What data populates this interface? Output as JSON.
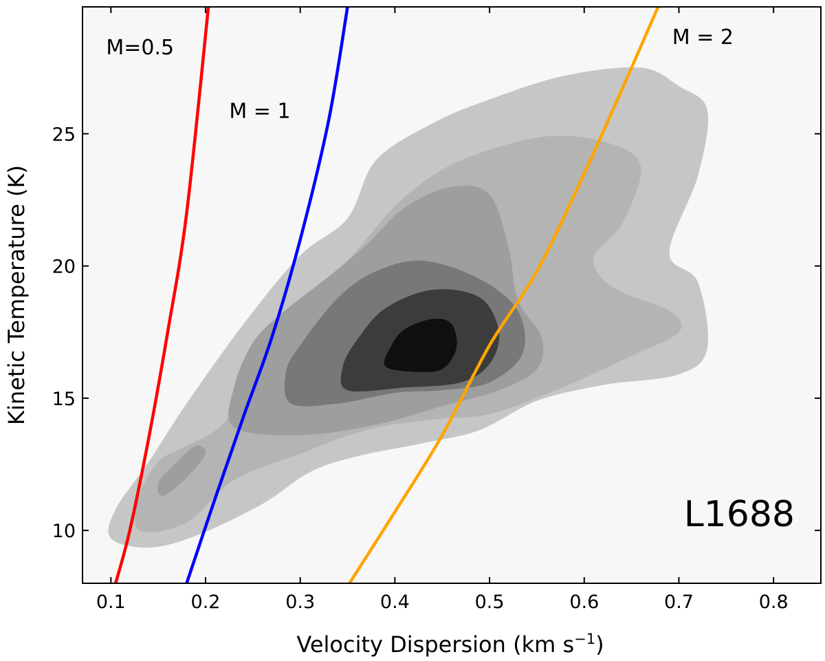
{
  "chart_data": {
    "type": "contour",
    "title": "",
    "xlabel": "Velocity Dispersion (km s",
    "xlabel_sup": "−1",
    "xlabel_close": ")",
    "ylabel": "Kinetic Temperature (K)",
    "xlim": [
      0.07,
      0.85
    ],
    "ylim": [
      8.0,
      29.8
    ],
    "xticks": [
      0.1,
      0.2,
      0.3,
      0.4,
      0.5,
      0.6,
      0.7,
      0.8
    ],
    "xtick_labels": [
      "0.1",
      "0.2",
      "0.3",
      "0.4",
      "0.5",
      "0.6",
      "0.7",
      "0.8"
    ],
    "yticks": [
      10,
      15,
      20,
      25
    ],
    "ytick_labels": [
      "10",
      "15",
      "20",
      "25"
    ],
    "region_label": "L1688",
    "background_color": "#f7f7f7",
    "mach_lines": [
      {
        "name": "M=0.5",
        "label": "M=0.5",
        "color": "#ff0000",
        "label_pos": [
          0.095,
          28.0
        ],
        "points": [
          [
            0.105,
            8.0
          ],
          [
            0.12,
            10.0
          ],
          [
            0.14,
            13.5
          ],
          [
            0.16,
            17.5
          ],
          [
            0.18,
            22.0
          ],
          [
            0.203,
            29.8
          ]
        ]
      },
      {
        "name": "M=1",
        "label": "M = 1",
        "color": "#0000ff",
        "label_pos": [
          0.225,
          25.6
        ],
        "points": [
          [
            0.18,
            8.0
          ],
          [
            0.21,
            11.2
          ],
          [
            0.24,
            14.3
          ],
          [
            0.27,
            17.3
          ],
          [
            0.3,
            21.0
          ],
          [
            0.33,
            25.5
          ],
          [
            0.35,
            29.8
          ]
        ]
      },
      {
        "name": "M=2",
        "label": "M = 2",
        "color": "#ffa500",
        "label_pos": [
          0.693,
          28.4
        ],
        "points": [
          [
            0.352,
            8.0
          ],
          [
            0.4,
            10.7
          ],
          [
            0.45,
            13.6
          ],
          [
            0.5,
            17.0
          ],
          [
            0.55,
            19.8
          ],
          [
            0.6,
            23.5
          ],
          [
            0.65,
            27.5
          ],
          [
            0.678,
            29.8
          ]
        ]
      }
    ],
    "density_levels": [
      {
        "level": 1,
        "color": "#c6c6c6",
        "polygon": [
          [
            0.1,
            9.7
          ],
          [
            0.14,
            9.35
          ],
          [
            0.19,
            9.8
          ],
          [
            0.26,
            11.0
          ],
          [
            0.31,
            12.2
          ],
          [
            0.36,
            12.8
          ],
          [
            0.43,
            13.3
          ],
          [
            0.49,
            13.8
          ],
          [
            0.55,
            14.9
          ],
          [
            0.62,
            15.5
          ],
          [
            0.7,
            15.9
          ],
          [
            0.73,
            16.9
          ],
          [
            0.72,
            19.4
          ],
          [
            0.69,
            20.5
          ],
          [
            0.72,
            23.4
          ],
          [
            0.73,
            25.9
          ],
          [
            0.7,
            26.8
          ],
          [
            0.66,
            27.5
          ],
          [
            0.58,
            27.2
          ],
          [
            0.5,
            26.3
          ],
          [
            0.44,
            25.4
          ],
          [
            0.38,
            24.0
          ],
          [
            0.35,
            21.8
          ],
          [
            0.3,
            20.4
          ],
          [
            0.24,
            17.8
          ],
          [
            0.18,
            14.8
          ],
          [
            0.14,
            12.6
          ],
          [
            0.105,
            10.8
          ]
        ]
      },
      {
        "level": 2,
        "color": "#b4b4b4",
        "polygon": [
          [
            0.13,
            10.0
          ],
          [
            0.18,
            10.3
          ],
          [
            0.23,
            11.9
          ],
          [
            0.3,
            12.9
          ],
          [
            0.37,
            13.8
          ],
          [
            0.44,
            14.2
          ],
          [
            0.5,
            14.4
          ],
          [
            0.57,
            15.3
          ],
          [
            0.65,
            16.6
          ],
          [
            0.7,
            17.5
          ],
          [
            0.69,
            18.3
          ],
          [
            0.63,
            19.2
          ],
          [
            0.61,
            20.3
          ],
          [
            0.64,
            21.6
          ],
          [
            0.66,
            23.7
          ],
          [
            0.63,
            24.6
          ],
          [
            0.56,
            24.9
          ],
          [
            0.47,
            24.0
          ],
          [
            0.41,
            22.6
          ],
          [
            0.36,
            20.6
          ],
          [
            0.32,
            19.0
          ],
          [
            0.27,
            16.8
          ],
          [
            0.22,
            14.1
          ],
          [
            0.18,
            13.2
          ],
          [
            0.15,
            12.6
          ],
          [
            0.13,
            11.3
          ]
        ]
      },
      {
        "level": 3,
        "color": "#9e9e9e",
        "polygon": [
          [
            0.23,
            13.9
          ],
          [
            0.3,
            13.6
          ],
          [
            0.38,
            14.0
          ],
          [
            0.45,
            14.7
          ],
          [
            0.51,
            15.3
          ],
          [
            0.55,
            16.1
          ],
          [
            0.555,
            17.3
          ],
          [
            0.53,
            18.7
          ],
          [
            0.52,
            20.7
          ],
          [
            0.5,
            22.7
          ],
          [
            0.46,
            23.0
          ],
          [
            0.41,
            22.2
          ],
          [
            0.37,
            20.8
          ],
          [
            0.33,
            19.6
          ],
          [
            0.28,
            18.2
          ],
          [
            0.25,
            17.1
          ],
          [
            0.23,
            15.4
          ]
        ]
      },
      {
        "level": 3,
        "color": "#9e9e9e",
        "polygon": [
          [
            0.155,
            11.3
          ],
          [
            0.18,
            12.0
          ],
          [
            0.2,
            12.9
          ],
          [
            0.19,
            13.2
          ],
          [
            0.17,
            12.6
          ],
          [
            0.15,
            11.8
          ]
        ]
      },
      {
        "level": 4,
        "color": "#787878",
        "polygon": [
          [
            0.29,
            14.8
          ],
          [
            0.34,
            14.8
          ],
          [
            0.4,
            15.2
          ],
          [
            0.45,
            15.3
          ],
          [
            0.5,
            15.6
          ],
          [
            0.535,
            16.7
          ],
          [
            0.53,
            18.3
          ],
          [
            0.49,
            19.5
          ],
          [
            0.43,
            20.2
          ],
          [
            0.38,
            19.8
          ],
          [
            0.34,
            18.8
          ],
          [
            0.3,
            17.0
          ],
          [
            0.285,
            16.0
          ]
        ]
      },
      {
        "level": 5,
        "color": "#3c3c3c",
        "polygon": [
          [
            0.35,
            15.3
          ],
          [
            0.41,
            15.4
          ],
          [
            0.47,
            15.6
          ],
          [
            0.5,
            16.3
          ],
          [
            0.51,
            17.5
          ],
          [
            0.49,
            18.8
          ],
          [
            0.44,
            19.1
          ],
          [
            0.39,
            18.4
          ],
          [
            0.36,
            17.2
          ],
          [
            0.345,
            16.2
          ]
        ]
      },
      {
        "level": 6,
        "color": "#0f0f0f",
        "polygon": [
          [
            0.39,
            16.2
          ],
          [
            0.42,
            16.0
          ],
          [
            0.45,
            16.1
          ],
          [
            0.465,
            16.9
          ],
          [
            0.46,
            17.8
          ],
          [
            0.44,
            18.0
          ],
          [
            0.41,
            17.6
          ],
          [
            0.395,
            16.9
          ]
        ]
      }
    ]
  }
}
